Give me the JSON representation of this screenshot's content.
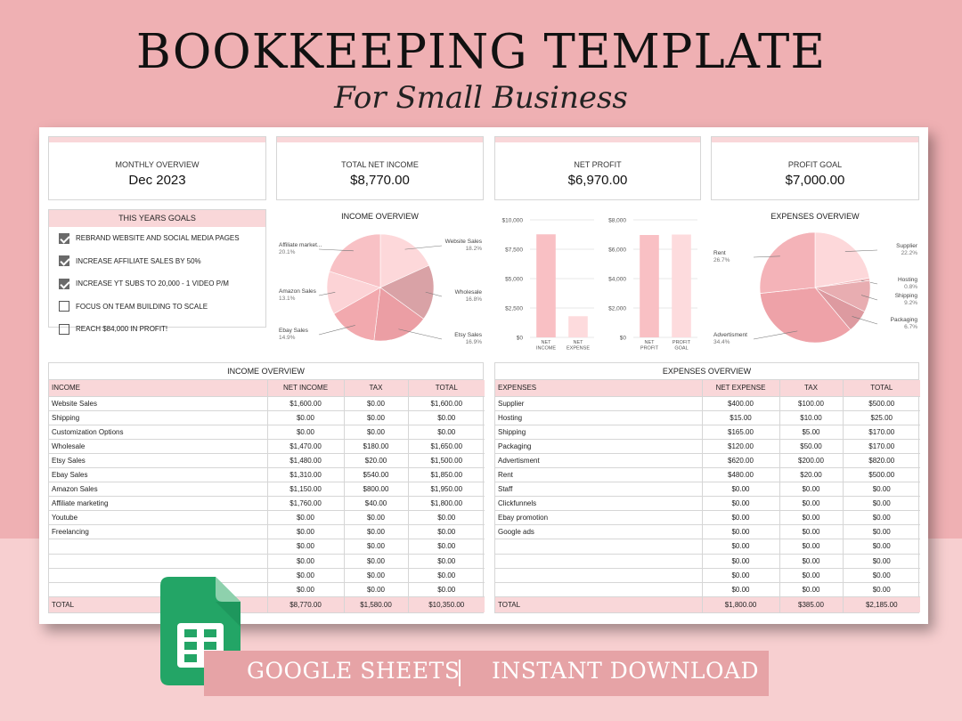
{
  "title": "BOOKKEEPING TEMPLATE",
  "subtitle": "For Small Business",
  "cards": [
    {
      "label": "MONTHLY OVERVIEW",
      "value": "Dec 2023"
    },
    {
      "label": "TOTAL NET INCOME",
      "value": "$8,770.00"
    },
    {
      "label": "NET PROFIT",
      "value": "$6,970.00"
    },
    {
      "label": "PROFIT GOAL",
      "value": "$7,000.00"
    }
  ],
  "goals": {
    "header": "THIS YEARS GOALS",
    "items": [
      {
        "label": "REBRAND WEBSITE AND SOCIAL MEDIA PAGES",
        "checked": true
      },
      {
        "label": "INCREASE AFFILIATE SALES BY 50%",
        "checked": true
      },
      {
        "label": "INCREASE YT SUBS TO 20,000 - 1 VIDEO P/M",
        "checked": true
      },
      {
        "label": "FOCUS ON TEAM BUILDING TO SCALE",
        "checked": false
      },
      {
        "label": "REACH $84,000 IN PROFIT!",
        "checked": false
      }
    ]
  },
  "colors": {
    "pink_header": "#f9d7d9",
    "background": "#efb0b3",
    "banner": "#e6a3a6",
    "sheets_green": "#23a566"
  },
  "chart_data": [
    {
      "type": "pie",
      "title": "INCOME OVERVIEW",
      "slices": [
        {
          "name": "Website Sales",
          "pct": "18.2%",
          "value": 18.2,
          "color": "#fdd8da"
        },
        {
          "name": "Wholesale",
          "pct": "16.8%",
          "value": 16.8,
          "color": "#d9a2a6"
        },
        {
          "name": "Etsy Sales",
          "pct": "16.9%",
          "value": 16.9,
          "color": "#eb9ea4"
        },
        {
          "name": "Ebay Sales",
          "pct": "14.9%",
          "value": 14.9,
          "color": "#f2a9ae"
        },
        {
          "name": "Amazon Sales",
          "pct": "13.1%",
          "value": 13.1,
          "color": "#fcd3d6"
        },
        {
          "name": "Affiliate market...",
          "pct": "20.1%",
          "value": 20.1,
          "color": "#f8c1c5"
        }
      ]
    },
    {
      "type": "bar",
      "categories": [
        "NET INCOME",
        "NET EXPENSE"
      ],
      "values": [
        8770,
        1800
      ],
      "yticks": [
        "$10,000",
        "$7,500",
        "$5,000",
        "$2,500",
        "$0"
      ],
      "ylim": [
        0,
        10000
      ],
      "colors": [
        "#f9c0c4",
        "#fddbdd"
      ]
    },
    {
      "type": "bar",
      "categories": [
        "NET PROFIT",
        "PROFIT GOAL"
      ],
      "values": [
        6970,
        7000
      ],
      "yticks": [
        "$8,000",
        "$6,000",
        "$4,000",
        "$2,000",
        "$0"
      ],
      "ylim": [
        0,
        8000
      ],
      "colors": [
        "#f9c0c4",
        "#fddbdd"
      ]
    },
    {
      "type": "pie",
      "title": "EXPENSES OVERVIEW",
      "slices": [
        {
          "name": "Supplier",
          "pct": "22.2%",
          "value": 22.2,
          "color": "#fdd8da"
        },
        {
          "name": "Hosting",
          "pct": "0.8%",
          "value": 0.8,
          "color": "#f0b8bc"
        },
        {
          "name": "Shipping",
          "pct": "9.2%",
          "value": 9.2,
          "color": "#e8adb1"
        },
        {
          "name": "Packaging",
          "pct": "6.7%",
          "value": 6.7,
          "color": "#dd9aa0"
        },
        {
          "name": "Advertisment",
          "pct": "34.4%",
          "value": 34.4,
          "color": "#eea2a8"
        },
        {
          "name": "Rent",
          "pct": "26.7%",
          "value": 26.7,
          "color": "#f4b3b8"
        }
      ]
    }
  ],
  "income_table": {
    "title": "INCOME OVERVIEW",
    "columns": [
      "INCOME",
      "NET INCOME",
      "TAX",
      "TOTAL"
    ],
    "rows": [
      [
        "Website Sales",
        "$1,600.00",
        "$0.00",
        "$1,600.00"
      ],
      [
        "Shipping",
        "$0.00",
        "$0.00",
        "$0.00"
      ],
      [
        "Customization Options",
        "$0.00",
        "$0.00",
        "$0.00"
      ],
      [
        "Wholesale",
        "$1,470.00",
        "$180.00",
        "$1,650.00"
      ],
      [
        "Etsy Sales",
        "$1,480.00",
        "$20.00",
        "$1,500.00"
      ],
      [
        "Ebay Sales",
        "$1,310.00",
        "$540.00",
        "$1,850.00"
      ],
      [
        "Amazon Sales",
        "$1,150.00",
        "$800.00",
        "$1,950.00"
      ],
      [
        "Affiliate marketing",
        "$1,760.00",
        "$40.00",
        "$1,800.00"
      ],
      [
        "Youtube",
        "$0.00",
        "$0.00",
        "$0.00"
      ],
      [
        "Freelancing",
        "$0.00",
        "$0.00",
        "$0.00"
      ],
      [
        "",
        "$0.00",
        "$0.00",
        "$0.00"
      ],
      [
        "",
        "$0.00",
        "$0.00",
        "$0.00"
      ],
      [
        "",
        "$0.00",
        "$0.00",
        "$0.00"
      ],
      [
        "",
        "$0.00",
        "$0.00",
        "$0.00"
      ]
    ],
    "total": [
      "TOTAL",
      "$8,770.00",
      "$1,580.00",
      "$10,350.00"
    ]
  },
  "expenses_table": {
    "title": "EXPENSES OVERVIEW",
    "columns": [
      "EXPENSES",
      "NET EXPENSE",
      "TAX",
      "TOTAL"
    ],
    "rows": [
      [
        "Supplier",
        "$400.00",
        "$100.00",
        "$500.00"
      ],
      [
        "Hosting",
        "$15.00",
        "$10.00",
        "$25.00"
      ],
      [
        "Shipping",
        "$165.00",
        "$5.00",
        "$170.00"
      ],
      [
        "Packaging",
        "$120.00",
        "$50.00",
        "$170.00"
      ],
      [
        "Advertisment",
        "$620.00",
        "$200.00",
        "$820.00"
      ],
      [
        "Rent",
        "$480.00",
        "$20.00",
        "$500.00"
      ],
      [
        "Staff",
        "$0.00",
        "$0.00",
        "$0.00"
      ],
      [
        "Clickfunnels",
        "$0.00",
        "$0.00",
        "$0.00"
      ],
      [
        "Ebay promotion",
        "$0.00",
        "$0.00",
        "$0.00"
      ],
      [
        "Google ads",
        "$0.00",
        "$0.00",
        "$0.00"
      ],
      [
        "",
        "$0.00",
        "$0.00",
        "$0.00"
      ],
      [
        "",
        "$0.00",
        "$0.00",
        "$0.00"
      ],
      [
        "",
        "$0.00",
        "$0.00",
        "$0.00"
      ],
      [
        "",
        "$0.00",
        "$0.00",
        "$0.00"
      ]
    ],
    "total": [
      "TOTAL",
      "$1,800.00",
      "$385.00",
      "$2,185.00"
    ]
  },
  "banner": {
    "left": "GOOGLE SHEETS",
    "right": "INSTANT DOWNLOAD"
  }
}
